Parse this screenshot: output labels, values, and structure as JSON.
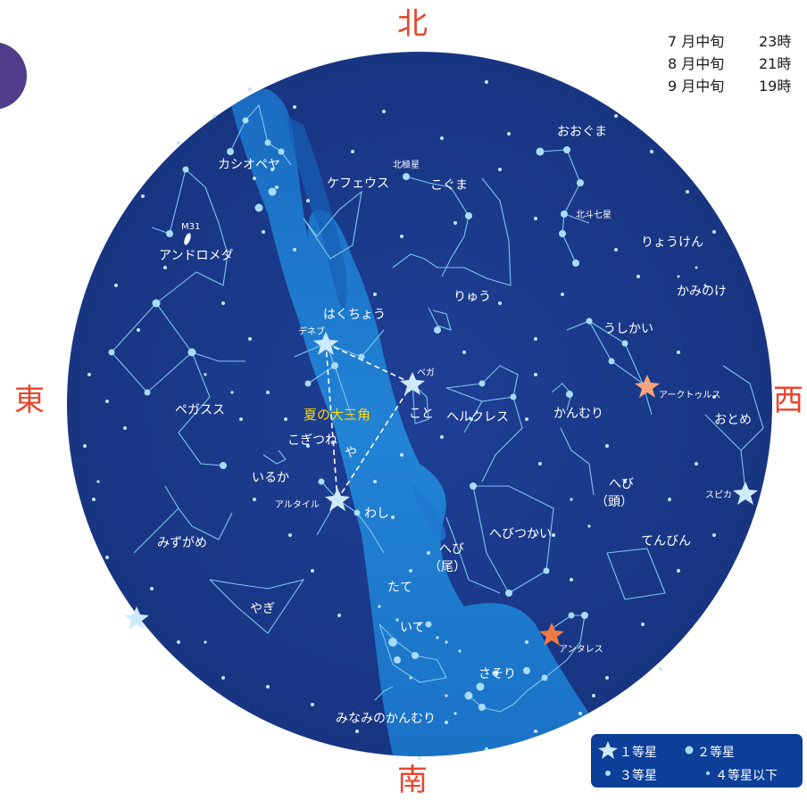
{
  "directions": {
    "north": "北",
    "south": "南",
    "east": "東",
    "west": "西"
  },
  "times": [
    {
      "date": "7 月中旬",
      "time": "23時"
    },
    {
      "date": "8 月中旬",
      "time": "21時"
    },
    {
      "date": "9 月中旬",
      "time": "19時"
    }
  ],
  "constellations": {
    "cassiopeia": "カシオペヤ",
    "cepheus": "ケフェウス",
    "ursa_minor": "こぐま",
    "ursa_major": "おおぐま",
    "andromeda": "アンドロメダ",
    "draco": "りゅう",
    "canes_venatici": "りょうけん",
    "coma": "かみのけ",
    "cygnus": "はくちょう",
    "bootes": "うしかい",
    "pegasus": "ペガスス",
    "lyra": "こと",
    "hercules": "ヘルクレス",
    "corona_borealis": "かんむり",
    "virgo": "おとめ",
    "vulpecula": "こぎつね",
    "sagitta": "や",
    "delphinus": "いるか",
    "aquila": "わし",
    "serpens_caput": "へび\n（頭）",
    "ophiuchus": "へびつかい",
    "serpens_cauda": "へび\n（尾）",
    "libra": "てんびん",
    "aquarius": "みずがめ",
    "scutum": "たて",
    "capricornus": "やぎ",
    "sagittarius": "いて",
    "scorpius": "さそり",
    "corona_australis": "みなみのかんむり"
  },
  "stars": {
    "polaris": "北極星",
    "big_dipper": "北斗七星",
    "m31": "M31",
    "deneb": "デネブ",
    "vega": "ベガ",
    "altair": "アルタイル",
    "arcturus": "アークトゥルス",
    "spica": "スピカ",
    "antares": "アンタレス"
  },
  "asterism": "夏の大三角",
  "legend": {
    "mag1": "１等星",
    "mag2": "２等星",
    "mag3": "３等星",
    "mag4": "４等星以下"
  },
  "colors": {
    "sky": "#1a3a8c",
    "milky_way": "#1f7fd0",
    "star": "#bfe6ff",
    "line": "#8fd0f5",
    "accent_red": "#e8452c",
    "triangle_label": "#ffd800",
    "red_star": "#f08a5d"
  }
}
